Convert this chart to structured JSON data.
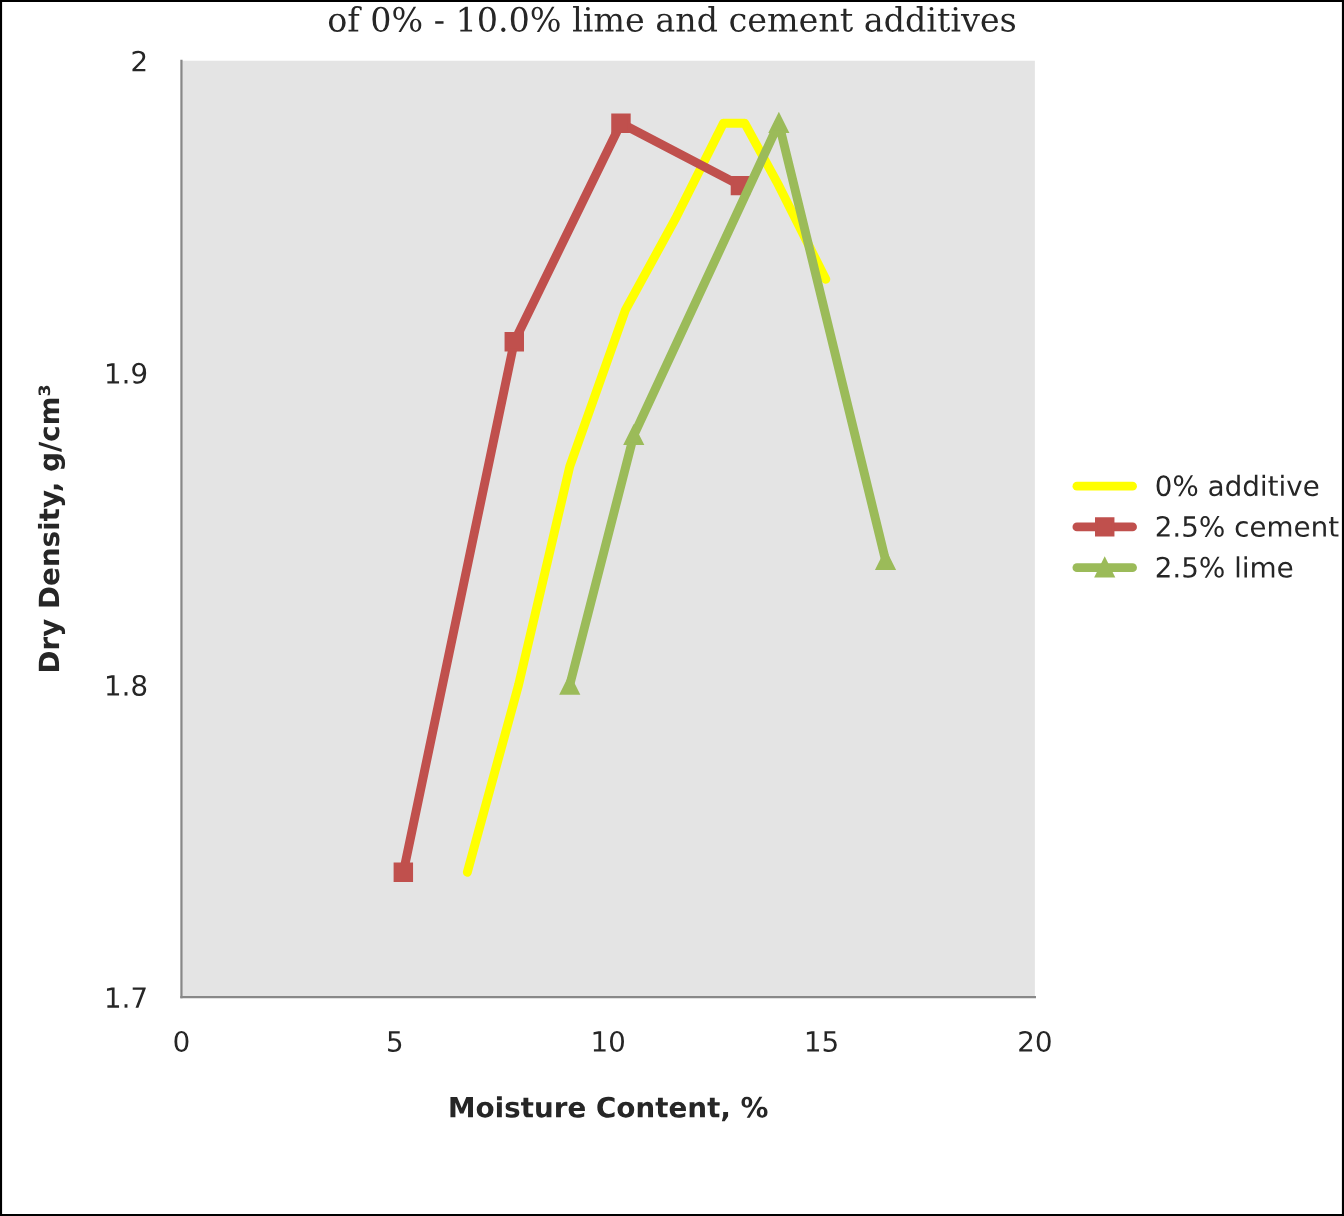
{
  "chart_data": {
    "type": "line",
    "title": "of 0% - 10.0% lime and cement additives",
    "xlabel": "Moisture Content, %",
    "ylabel": "Dry Density, g/cm³",
    "xlim": [
      0,
      20
    ],
    "xticks": [
      0,
      5,
      10,
      15,
      20
    ],
    "ylim": [
      1.7,
      2
    ],
    "yticks": [
      1.7,
      1.8,
      1.9,
      2
    ],
    "grid": false,
    "legend": "right",
    "series": [
      {
        "name": "0% additive",
        "color": "#ffff00",
        "marker": "none",
        "x": [
          6.7,
          7.9,
          9.1,
          10.4,
          11.6,
          12.7,
          13.2,
          14.0,
          15.1
        ],
        "values": [
          1.74,
          1.8,
          1.87,
          1.92,
          1.95,
          1.98,
          1.98,
          1.96,
          1.93
        ]
      },
      {
        "name": "2.5% cement",
        "color": "#c0504d",
        "marker": "square",
        "x": [
          5.2,
          7.8,
          10.3,
          13.1
        ],
        "values": [
          1.74,
          1.91,
          1.98,
          1.96
        ]
      },
      {
        "name": "2.5% lime",
        "color": "#9bbb59",
        "marker": "triangle",
        "x": [
          9.1,
          10.6,
          14.0,
          16.5
        ],
        "values": [
          1.8,
          1.88,
          1.98,
          1.84
        ]
      }
    ]
  }
}
